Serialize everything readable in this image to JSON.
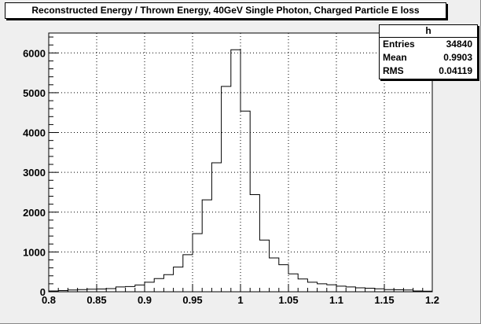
{
  "chart_data": {
    "type": "histogram",
    "title": "Reconstructed Energy / Thrown Energy, 40GeV Single Photon, Charged Particle E loss",
    "xlim": [
      0.8,
      1.2
    ],
    "ylim": [
      0,
      6500
    ],
    "bin_width": 0.01,
    "x_ticks": [
      "0.8",
      "0.85",
      "0.9",
      "0.95",
      "1",
      "1.05",
      "1.1",
      "1.15",
      "1.2"
    ],
    "x_tick_values": [
      0.8,
      0.85,
      0.9,
      0.95,
      1.0,
      1.05,
      1.1,
      1.15,
      1.2
    ],
    "y_ticks": [
      "0",
      "1000",
      "2000",
      "3000",
      "4000",
      "5000",
      "6000"
    ],
    "y_tick_values": [
      0,
      1000,
      2000,
      3000,
      4000,
      5000,
      6000
    ],
    "grid": true,
    "bin_edges": [
      0.8,
      0.81,
      0.82,
      0.83,
      0.84,
      0.85,
      0.86,
      0.87,
      0.88,
      0.89,
      0.9,
      0.91,
      0.92,
      0.93,
      0.94,
      0.95,
      0.96,
      0.97,
      0.98,
      0.99,
      1.0,
      1.01,
      1.02,
      1.03,
      1.04,
      1.05,
      1.06,
      1.07,
      1.08,
      1.09,
      1.1,
      1.11,
      1.12,
      1.13,
      1.14,
      1.15,
      1.16,
      1.17,
      1.18,
      1.19,
      1.2
    ],
    "counts": [
      20,
      30,
      45,
      55,
      65,
      70,
      80,
      120,
      130,
      170,
      240,
      330,
      430,
      620,
      930,
      1460,
      2310,
      3240,
      5160,
      6080,
      4540,
      2440,
      1300,
      850,
      680,
      450,
      320,
      240,
      200,
      175,
      140,
      120,
      100,
      90,
      75,
      55,
      50,
      45,
      20,
      15
    ],
    "stats": {
      "name": "h",
      "entries_label": "Entries",
      "entries": "34840",
      "mean_label": "Mean",
      "mean": "0.9903",
      "rms_label": "RMS",
      "rms": "0.04119"
    }
  }
}
